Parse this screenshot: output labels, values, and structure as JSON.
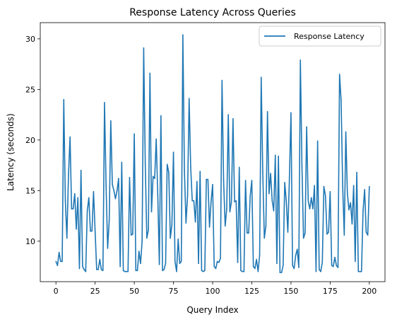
{
  "chart_data": {
    "type": "line",
    "title": "Response Latency Across Queries",
    "xlabel": "Query Index",
    "ylabel": "Latency (seconds)",
    "xlim": [
      -10,
      210
    ],
    "ylim": [
      6,
      31.6
    ],
    "xticks": [
      0,
      25,
      50,
      75,
      100,
      125,
      150,
      175,
      200
    ],
    "yticks": [
      10,
      15,
      20,
      25,
      30
    ],
    "grid": false,
    "legend_position": "top-right",
    "series": [
      {
        "name": "Response Latency",
        "color": "#1f77b4",
        "x_start": 0,
        "values": [
          8.0,
          7.6,
          8.9,
          8.0,
          8.0,
          24.0,
          14.0,
          10.3,
          16.5,
          20.3,
          13.2,
          13.2,
          14.7,
          11.2,
          14.3,
          7.3,
          17.0,
          7.5,
          7.2,
          7.0,
          13.0,
          14.3,
          11.0,
          11.0,
          14.9,
          11.0,
          7.2,
          7.2,
          8.2,
          7.2,
          7.1,
          23.7,
          15.5,
          9.3,
          12.0,
          21.9,
          15.6,
          15.0,
          14.2,
          15.0,
          16.2,
          7.5,
          17.8,
          7.1,
          7.0,
          7.0,
          7.0,
          16.3,
          10.6,
          10.7,
          20.6,
          7.1,
          7.1,
          9.0,
          7.8,
          10.0,
          29.1,
          17.7,
          10.3,
          11.1,
          26.6,
          12.9,
          16.4,
          16.2,
          20.1,
          14.5,
          7.7,
          22.4,
          7.1,
          7.2,
          7.8,
          17.6,
          16.8,
          10.3,
          11.6,
          18.8,
          8.0,
          7.0,
          10.2,
          7.8,
          8.0,
          30.4,
          17.0,
          11.8,
          14.5,
          24.1,
          17.3,
          14.0,
          14.0,
          11.9,
          15.9,
          7.8,
          16.9,
          7.1,
          7.0,
          7.1,
          16.1,
          16.1,
          11.4,
          13.9,
          15.6,
          7.5,
          7.3,
          8.0,
          7.9,
          8.3,
          25.9,
          16.0,
          11.5,
          13.2,
          22.5,
          12.9,
          13.9,
          22.1,
          13.9,
          14.0,
          7.9,
          17.3,
          7.1,
          7.0,
          7.0,
          16.0,
          10.8,
          10.8,
          14.5,
          16.0,
          7.5,
          7.3,
          8.2,
          7.0,
          8.6,
          26.2,
          16.8,
          10.3,
          11.5,
          22.8,
          14.7,
          16.7,
          14.0,
          13.0,
          18.5,
          7.8,
          18.4,
          6.9,
          6.9,
          7.6,
          15.8,
          14.0,
          10.9,
          16.2,
          22.7,
          7.6,
          7.3,
          8.6,
          9.2,
          7.4,
          27.9,
          17.4,
          10.3,
          10.8,
          21.3,
          14.0,
          13.2,
          14.3,
          13.2,
          15.5,
          7.0,
          19.9,
          7.2,
          7.0,
          7.9,
          15.4,
          14.5,
          10.7,
          10.9,
          14.9,
          7.6,
          7.5,
          8.4,
          7.6,
          7.4,
          26.5,
          23.9,
          15.4,
          10.6,
          20.8,
          14.7,
          13.1,
          13.8,
          11.7,
          15.5,
          8.0,
          16.8,
          7.0,
          7.0,
          7.0,
          13.0,
          15.1,
          10.9,
          10.6,
          15.4
        ]
      }
    ]
  }
}
